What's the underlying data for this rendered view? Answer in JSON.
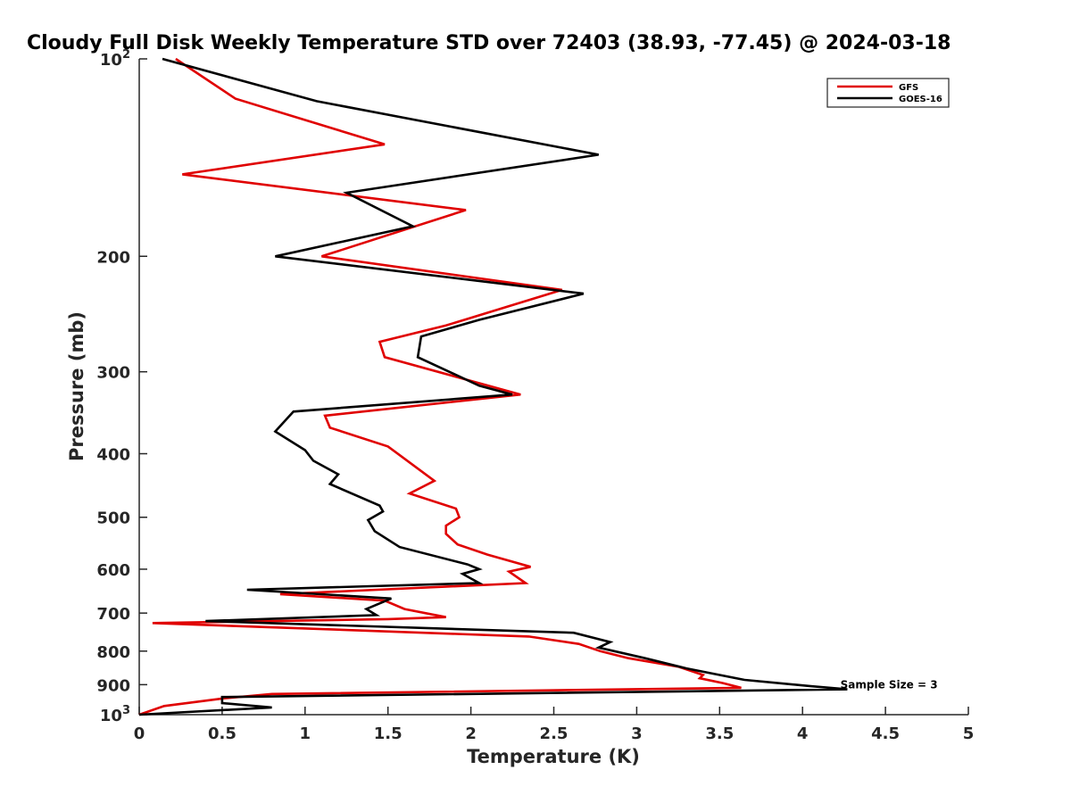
{
  "chart_data": {
    "type": "line",
    "title": "Cloudy Full Disk Weekly Temperature STD over 72403 (38.93, -77.45) @ 2024-03-18",
    "xlabel": "Temperature (K)",
    "ylabel": "Pressure (mb)",
    "xlim": [
      0,
      5
    ],
    "ylim": [
      100,
      1000
    ],
    "y_scale": "log",
    "y_reversed": true,
    "grid": false,
    "legend_position": "top-right",
    "x_ticks": [
      {
        "value": 0,
        "label": "0"
      },
      {
        "value": 0.5,
        "label": "0.5"
      },
      {
        "value": 1,
        "label": "1"
      },
      {
        "value": 1.5,
        "label": "1.5"
      },
      {
        "value": 2,
        "label": "2"
      },
      {
        "value": 2.5,
        "label": "2.5"
      },
      {
        "value": 3,
        "label": "3"
      },
      {
        "value": 3.5,
        "label": "3.5"
      },
      {
        "value": 4,
        "label": "4"
      },
      {
        "value": 4.5,
        "label": "4.5"
      },
      {
        "value": 5,
        "label": "5"
      }
    ],
    "y_ticks": [
      {
        "value": 100,
        "label": "10",
        "sup": "2"
      },
      {
        "value": 200,
        "label": "200",
        "sup": ""
      },
      {
        "value": 300,
        "label": "300",
        "sup": ""
      },
      {
        "value": 400,
        "label": "400",
        "sup": ""
      },
      {
        "value": 500,
        "label": "500",
        "sup": ""
      },
      {
        "value": 600,
        "label": "600",
        "sup": ""
      },
      {
        "value": 700,
        "label": "700",
        "sup": ""
      },
      {
        "value": 800,
        "label": "800",
        "sup": ""
      },
      {
        "value": 900,
        "label": "900",
        "sup": ""
      },
      {
        "value": 1000,
        "label": "10",
        "sup": "3"
      }
    ],
    "annotation": {
      "text": "Sample Size = 3",
      "x": 4.25,
      "p": 900
    },
    "series": [
      {
        "name": "GFS",
        "color": "#e00000",
        "points": [
          [
            0.22,
            100
          ],
          [
            0.58,
            115
          ],
          [
            1.48,
            135
          ],
          [
            0.26,
            150
          ],
          [
            1.97,
            170
          ],
          [
            1.1,
            200
          ],
          [
            2.55,
            225
          ],
          [
            1.85,
            255
          ],
          [
            1.45,
            270
          ],
          [
            1.48,
            285
          ],
          [
            2.3,
            325
          ],
          [
            1.12,
            350
          ],
          [
            1.15,
            365
          ],
          [
            1.5,
            390
          ],
          [
            1.78,
            440
          ],
          [
            1.63,
            460
          ],
          [
            1.91,
            485
          ],
          [
            1.93,
            500
          ],
          [
            1.85,
            515
          ],
          [
            1.85,
            530
          ],
          [
            1.92,
            550
          ],
          [
            2.1,
            570
          ],
          [
            2.36,
            595
          ],
          [
            2.23,
            605
          ],
          [
            2.33,
            630
          ],
          [
            0.85,
            655
          ],
          [
            1.48,
            670
          ],
          [
            1.6,
            690
          ],
          [
            1.85,
            710
          ],
          [
            1.5,
            715
          ],
          [
            0.08,
            725
          ],
          [
            2.35,
            760
          ],
          [
            2.65,
            780
          ],
          [
            2.78,
            800
          ],
          [
            2.95,
            820
          ],
          [
            3.25,
            845
          ],
          [
            3.4,
            870
          ],
          [
            3.38,
            880
          ],
          [
            3.52,
            895
          ],
          [
            3.63,
            910
          ],
          [
            0.8,
            930
          ],
          [
            0.5,
            945
          ],
          [
            0.15,
            970
          ],
          [
            0.0,
            1000
          ]
        ]
      },
      {
        "name": "GOES-16",
        "color": "#000000",
        "points": [
          [
            0.14,
            100
          ],
          [
            1.07,
            116
          ],
          [
            2.77,
            140
          ],
          [
            1.25,
            160
          ],
          [
            1.65,
            180
          ],
          [
            0.82,
            200
          ],
          [
            2.68,
            228
          ],
          [
            2.05,
            250
          ],
          [
            1.7,
            265
          ],
          [
            1.68,
            285
          ],
          [
            2.05,
            315
          ],
          [
            2.25,
            325
          ],
          [
            0.93,
            345
          ],
          [
            0.82,
            370
          ],
          [
            1.0,
            395
          ],
          [
            1.05,
            410
          ],
          [
            1.2,
            430
          ],
          [
            1.15,
            445
          ],
          [
            1.45,
            480
          ],
          [
            1.47,
            490
          ],
          [
            1.38,
            505
          ],
          [
            1.42,
            525
          ],
          [
            1.57,
            555
          ],
          [
            1.98,
            590
          ],
          [
            2.05,
            600
          ],
          [
            1.95,
            610
          ],
          [
            2.05,
            630
          ],
          [
            0.65,
            645
          ],
          [
            1.52,
            665
          ],
          [
            1.37,
            690
          ],
          [
            1.43,
            705
          ],
          [
            0.4,
            720
          ],
          [
            2.62,
            750
          ],
          [
            2.84,
            775
          ],
          [
            2.77,
            790
          ],
          [
            3.05,
            820
          ],
          [
            3.3,
            850
          ],
          [
            3.65,
            885
          ],
          [
            4.05,
            905
          ],
          [
            4.27,
            915
          ],
          [
            0.5,
            940
          ],
          [
            0.5,
            960
          ],
          [
            0.8,
            975
          ],
          [
            0.0,
            1000
          ]
        ]
      }
    ]
  }
}
